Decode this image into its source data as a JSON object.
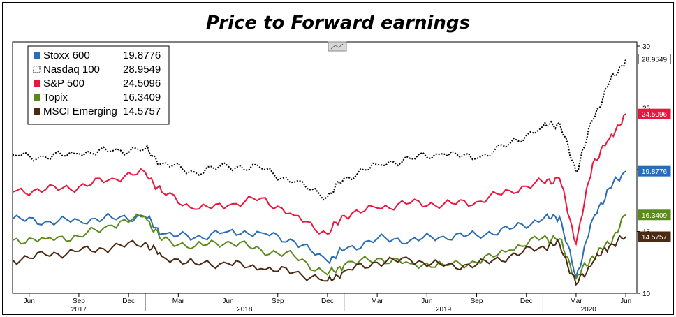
{
  "title": "Price to Forward earnings",
  "colors": {
    "Stoxx 600": "#2a6db5",
    "Nasdaq 100": "#000000",
    "S&P 500": "#e8173c",
    "Topix": "#5a8a1a",
    "MSCI Emerging": "#4a2a12"
  },
  "chart_data": {
    "type": "line",
    "title": "Price to Forward earnings",
    "xlabel": "",
    "ylabel": "",
    "ylim": [
      10,
      30
    ],
    "yticks": [
      10,
      15,
      20,
      25,
      30
    ],
    "grid": false,
    "legend_position": "top-left",
    "x_month_ticks": [
      "Jun",
      "Sep",
      "Dec",
      "Mar",
      "Jun",
      "Sep",
      "Dec",
      "Mar",
      "Jun",
      "Sep",
      "Dec",
      "Mar",
      "Jun"
    ],
    "x_year_labels": [
      "2017",
      "2018",
      "2019",
      "2020"
    ],
    "series": [
      {
        "name": "Stoxx 600",
        "last": "19.8776",
        "style": "solid",
        "x": [
          "2017-05",
          "2017-07",
          "2017-09",
          "2017-11",
          "2018-01",
          "2018-02",
          "2018-04",
          "2018-06",
          "2018-08",
          "2018-10",
          "2018-12",
          "2019-01",
          "2019-03",
          "2019-05",
          "2019-07",
          "2019-09",
          "2019-11",
          "2020-01",
          "2020-02",
          "2020-03",
          "2020-04",
          "2020-05",
          "2020-06"
        ],
        "y": [
          16.0,
          15.8,
          15.9,
          16.1,
          16.2,
          14.8,
          14.5,
          15.0,
          14.9,
          14.2,
          12.6,
          13.5,
          14.4,
          14.3,
          14.6,
          14.7,
          15.2,
          16.0,
          16.2,
          11.3,
          16.0,
          18.5,
          19.8776
        ]
      },
      {
        "name": "Nasdaq 100",
        "last": "28.9549",
        "style": "dotted",
        "x": [
          "2017-05",
          "2017-07",
          "2017-09",
          "2017-11",
          "2018-01",
          "2018-02",
          "2018-04",
          "2018-06",
          "2018-08",
          "2018-10",
          "2018-12",
          "2019-01",
          "2019-03",
          "2019-05",
          "2019-07",
          "2019-09",
          "2019-11",
          "2020-01",
          "2020-02",
          "2020-03",
          "2020-04",
          "2020-05",
          "2020-06"
        ],
        "y": [
          21.2,
          21.0,
          21.3,
          21.5,
          21.7,
          20.5,
          19.8,
          20.3,
          20.1,
          19.0,
          17.8,
          19.3,
          20.4,
          20.9,
          21.3,
          20.9,
          22.1,
          23.5,
          23.8,
          19.8,
          24.0,
          27.0,
          28.9549
        ]
      },
      {
        "name": "S&P 500",
        "last": "24.5096",
        "style": "solid",
        "x": [
          "2017-05",
          "2017-07",
          "2017-09",
          "2017-11",
          "2018-01",
          "2018-02",
          "2018-04",
          "2018-06",
          "2018-08",
          "2018-10",
          "2018-12",
          "2019-01",
          "2019-03",
          "2019-05",
          "2019-07",
          "2019-09",
          "2019-11",
          "2020-01",
          "2020-02",
          "2020-03",
          "2020-04",
          "2020-05",
          "2020-06"
        ],
        "y": [
          18.2,
          18.4,
          18.6,
          19.3,
          19.8,
          18.2,
          16.8,
          17.1,
          17.7,
          16.3,
          14.8,
          16.3,
          16.9,
          17.3,
          17.2,
          17.4,
          18.3,
          19.0,
          19.3,
          14.0,
          20.5,
          22.5,
          24.5096
        ]
      },
      {
        "name": "Topix",
        "last": "16.3409",
        "style": "solid",
        "x": [
          "2017-05",
          "2017-07",
          "2017-09",
          "2017-11",
          "2018-01",
          "2018-02",
          "2018-04",
          "2018-06",
          "2018-08",
          "2018-10",
          "2018-12",
          "2019-01",
          "2019-03",
          "2019-05",
          "2019-07",
          "2019-09",
          "2019-11",
          "2020-01",
          "2020-02",
          "2020-03",
          "2020-04",
          "2020-05",
          "2020-06"
        ],
        "y": [
          14.3,
          14.4,
          14.6,
          15.5,
          16.2,
          14.3,
          13.8,
          14.2,
          13.5,
          13.0,
          11.5,
          12.3,
          12.8,
          12.4,
          12.3,
          12.5,
          13.5,
          14.5,
          14.4,
          11.2,
          13.0,
          14.0,
          16.3409
        ]
      },
      {
        "name": "MSCI Emerging",
        "last": "14.5757",
        "style": "solid",
        "x": [
          "2017-05",
          "2017-07",
          "2017-09",
          "2017-11",
          "2018-01",
          "2018-02",
          "2018-04",
          "2018-06",
          "2018-08",
          "2018-10",
          "2018-12",
          "2019-01",
          "2019-03",
          "2019-05",
          "2019-07",
          "2019-09",
          "2019-11",
          "2020-01",
          "2020-02",
          "2020-03",
          "2020-04",
          "2020-05",
          "2020-06"
        ],
        "y": [
          12.7,
          13.1,
          13.4,
          13.7,
          14.1,
          13.0,
          12.4,
          12.4,
          12.0,
          11.7,
          11.0,
          11.8,
          12.5,
          12.7,
          12.2,
          12.3,
          13.0,
          13.8,
          14.0,
          10.7,
          12.5,
          13.8,
          14.5757
        ]
      }
    ]
  },
  "legend": [
    {
      "name": "Stoxx 600",
      "value": "19.8776"
    },
    {
      "name": "Nasdaq 100",
      "value": "28.9549"
    },
    {
      "name": "S&P 500",
      "value": "24.5096"
    },
    {
      "name": "Topix",
      "value": "16.3409"
    },
    {
      "name": "MSCI Emerging",
      "value": "14.5757"
    }
  ]
}
